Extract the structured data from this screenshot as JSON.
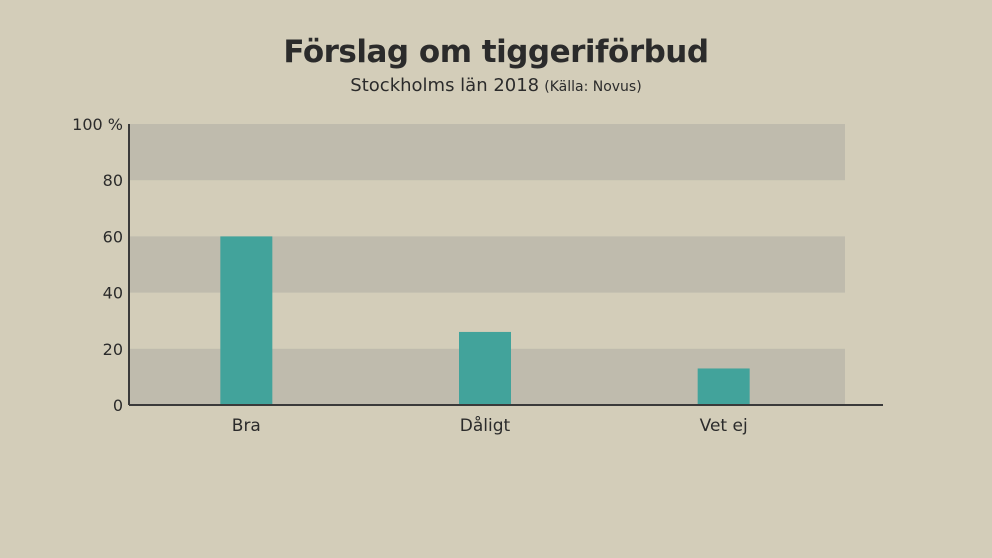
{
  "chart_data": {
    "type": "bar",
    "title": "Förslag om tiggeriförbud",
    "subtitle": "Stockholms län 2018",
    "source": "(Källa: Novus)",
    "categories": [
      "Bra",
      "Dåligt",
      "Vet ej"
    ],
    "values": [
      60,
      26,
      13
    ],
    "ylim": [
      0,
      100
    ],
    "yticks": [
      0,
      20,
      40,
      60,
      80,
      100
    ],
    "ytick_labels": [
      "0",
      "20",
      "40",
      "60",
      "80",
      "100 %"
    ],
    "xlabel": "",
    "ylabel": "",
    "legend": "none",
    "colors": {
      "bar": "#42a39b",
      "band": "#bfbbad",
      "background": "#d3cdb9",
      "axis": "#3a3a3a"
    }
  }
}
